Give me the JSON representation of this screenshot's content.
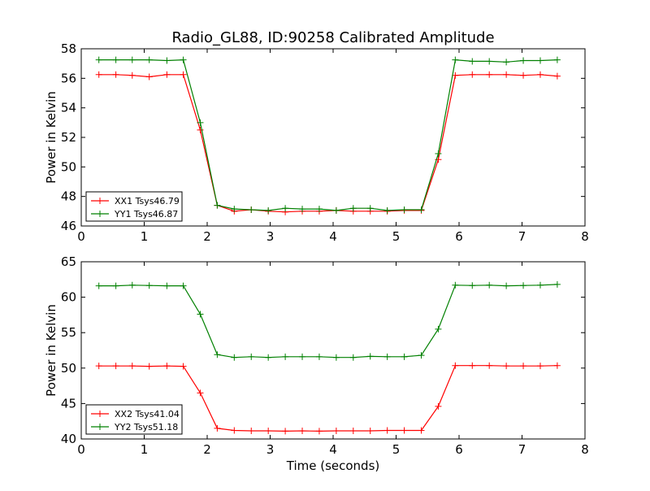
{
  "figure": {
    "title": "Radio_GL88, ID:90258 Calibrated Amplitude"
  },
  "chart_data": [
    {
      "type": "line",
      "xlabel": "",
      "ylabel": "Power in Kelvin",
      "xlim": [
        0,
        8
      ],
      "ylim": [
        46,
        58
      ],
      "xticks": [
        "0",
        "1",
        "2",
        "3",
        "4",
        "5",
        "6",
        "7",
        "8"
      ],
      "yticks": [
        "46",
        "48",
        "50",
        "52",
        "54",
        "56",
        "58"
      ],
      "grid": false,
      "legend_position": "lower-left",
      "x": [
        0.28,
        0.55,
        0.81,
        1.08,
        1.36,
        1.62,
        1.89,
        2.16,
        2.43,
        2.7,
        2.97,
        3.24,
        3.51,
        3.78,
        4.05,
        4.32,
        4.59,
        4.86,
        5.13,
        5.4,
        5.67,
        5.94,
        6.21,
        6.48,
        6.75,
        7.02,
        7.29,
        7.56
      ],
      "series": [
        {
          "name": "XX1 Tsys46.79",
          "color": "#ff0000",
          "values": [
            56.25,
            56.25,
            56.2,
            56.1,
            56.25,
            56.25,
            52.5,
            47.4,
            47.0,
            47.1,
            47.0,
            46.95,
            47.0,
            47.0,
            47.05,
            47.0,
            47.0,
            47.0,
            47.05,
            47.05,
            50.5,
            56.2,
            56.25,
            56.25,
            56.25,
            56.2,
            56.25,
            56.15
          ]
        },
        {
          "name": "YY1 Tsys46.87",
          "color": "#008000",
          "values": [
            57.25,
            57.25,
            57.25,
            57.25,
            57.2,
            57.25,
            53.0,
            47.4,
            47.15,
            47.1,
            47.05,
            47.2,
            47.15,
            47.15,
            47.05,
            47.2,
            47.2,
            47.05,
            47.1,
            47.1,
            50.9,
            57.25,
            57.15,
            57.15,
            57.1,
            57.2,
            57.2,
            57.25
          ]
        }
      ]
    },
    {
      "type": "line",
      "xlabel": "Time (seconds)",
      "ylabel": "Power in Kelvin",
      "xlim": [
        0,
        8
      ],
      "ylim": [
        40,
        65
      ],
      "xticks": [
        "0",
        "1",
        "2",
        "3",
        "4",
        "5",
        "6",
        "7",
        "8"
      ],
      "yticks": [
        "40",
        "45",
        "50",
        "55",
        "60",
        "65"
      ],
      "grid": false,
      "legend_position": "lower-left",
      "x": [
        0.28,
        0.55,
        0.81,
        1.08,
        1.36,
        1.62,
        1.89,
        2.16,
        2.43,
        2.7,
        2.97,
        3.24,
        3.51,
        3.78,
        4.05,
        4.32,
        4.59,
        4.86,
        5.13,
        5.4,
        5.67,
        5.94,
        6.21,
        6.48,
        6.75,
        7.02,
        7.29,
        7.56
      ],
      "series": [
        {
          "name": "XX2 Tsys41.04",
          "color": "#ff0000",
          "values": [
            50.3,
            50.3,
            50.3,
            50.25,
            50.3,
            50.25,
            46.5,
            41.5,
            41.2,
            41.15,
            41.15,
            41.1,
            41.15,
            41.1,
            41.15,
            41.15,
            41.15,
            41.2,
            41.2,
            41.2,
            44.6,
            50.35,
            50.35,
            50.35,
            50.3,
            50.3,
            50.3,
            50.35
          ]
        },
        {
          "name": "YY2 Tsys51.18",
          "color": "#008000",
          "values": [
            61.6,
            61.6,
            61.7,
            61.65,
            61.6,
            61.6,
            57.6,
            51.9,
            51.5,
            51.6,
            51.5,
            51.6,
            51.6,
            51.6,
            51.5,
            51.5,
            51.65,
            51.6,
            51.6,
            51.8,
            55.5,
            61.7,
            61.65,
            61.7,
            61.6,
            61.65,
            61.7,
            61.8
          ]
        }
      ]
    }
  ]
}
